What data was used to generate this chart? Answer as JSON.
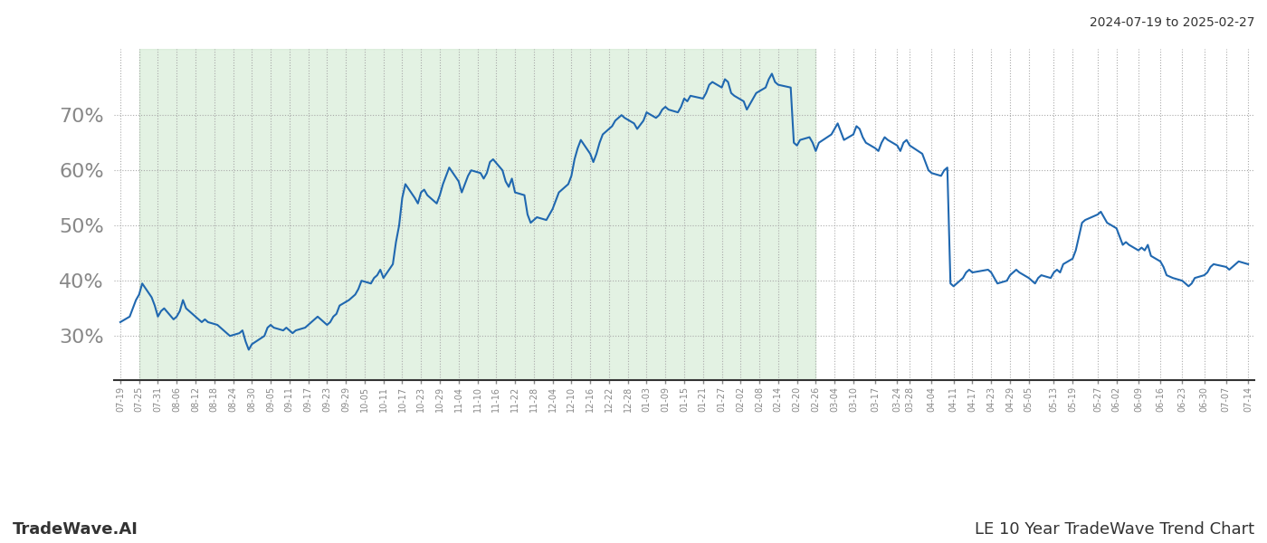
{
  "title_right": "2024-07-19 to 2025-02-27",
  "footer_left": "TradeWave.AI",
  "footer_right": "LE 10 Year TradeWave Trend Chart",
  "shaded_region_start": "2024-07-25",
  "shaded_region_end": "2025-02-26",
  "shaded_color": "#c8e6c9",
  "shaded_alpha": 0.5,
  "line_color": "#2068b0",
  "line_width": 1.5,
  "bg_color": "#ffffff",
  "grid_color": "#aaaaaa",
  "grid_style": ":",
  "ytick_labels": [
    "30%",
    "40%",
    "50%",
    "60%",
    "70%"
  ],
  "ytick_values": [
    30,
    40,
    50,
    60,
    70
  ],
  "ylim": [
    22,
    82
  ],
  "dates": [
    "2024-07-19",
    "2024-07-22",
    "2024-07-23",
    "2024-07-24",
    "2024-07-25",
    "2024-07-26",
    "2024-07-29",
    "2024-07-30",
    "2024-07-31",
    "2024-08-01",
    "2024-08-02",
    "2024-08-05",
    "2024-08-06",
    "2024-08-07",
    "2024-08-08",
    "2024-08-09",
    "2024-08-12",
    "2024-08-13",
    "2024-08-14",
    "2024-08-15",
    "2024-08-16",
    "2024-08-19",
    "2024-08-20",
    "2024-08-21",
    "2024-08-22",
    "2024-08-23",
    "2024-08-26",
    "2024-08-27",
    "2024-08-28",
    "2024-08-29",
    "2024-08-30",
    "2024-09-03",
    "2024-09-04",
    "2024-09-05",
    "2024-09-06",
    "2024-09-09",
    "2024-09-10",
    "2024-09-11",
    "2024-09-12",
    "2024-09-13",
    "2024-09-16",
    "2024-09-17",
    "2024-09-18",
    "2024-09-19",
    "2024-09-20",
    "2024-09-23",
    "2024-09-24",
    "2024-09-25",
    "2024-09-26",
    "2024-09-27",
    "2024-09-30",
    "2024-10-01",
    "2024-10-02",
    "2024-10-03",
    "2024-10-04",
    "2024-10-07",
    "2024-10-08",
    "2024-10-09",
    "2024-10-10",
    "2024-10-11",
    "2024-10-14",
    "2024-10-15",
    "2024-10-16",
    "2024-10-17",
    "2024-10-18",
    "2024-10-21",
    "2024-10-22",
    "2024-10-23",
    "2024-10-24",
    "2024-10-25",
    "2024-10-28",
    "2024-10-29",
    "2024-10-30",
    "2024-10-31",
    "2024-11-01",
    "2024-11-04",
    "2024-11-05",
    "2024-11-06",
    "2024-11-07",
    "2024-11-08",
    "2024-11-11",
    "2024-11-12",
    "2024-11-13",
    "2024-11-14",
    "2024-11-15",
    "2024-11-18",
    "2024-11-19",
    "2024-11-20",
    "2024-11-21",
    "2024-11-22",
    "2024-11-25",
    "2024-11-26",
    "2024-11-27",
    "2024-11-29",
    "2024-12-02",
    "2024-12-03",
    "2024-12-04",
    "2024-12-05",
    "2024-12-06",
    "2024-12-09",
    "2024-12-10",
    "2024-12-11",
    "2024-12-12",
    "2024-12-13",
    "2024-12-16",
    "2024-12-17",
    "2024-12-18",
    "2024-12-19",
    "2024-12-20",
    "2024-12-23",
    "2024-12-24",
    "2024-12-26",
    "2024-12-27",
    "2024-12-30",
    "2024-12-31",
    "2025-01-02",
    "2025-01-03",
    "2025-01-06",
    "2025-01-07",
    "2025-01-08",
    "2025-01-09",
    "2025-01-10",
    "2025-01-13",
    "2025-01-14",
    "2025-01-15",
    "2025-01-16",
    "2025-01-17",
    "2025-01-21",
    "2025-01-22",
    "2025-01-23",
    "2025-01-24",
    "2025-01-27",
    "2025-01-28",
    "2025-01-29",
    "2025-01-30",
    "2025-01-31",
    "2025-02-03",
    "2025-02-04",
    "2025-02-05",
    "2025-02-06",
    "2025-02-07",
    "2025-02-10",
    "2025-02-11",
    "2025-02-12",
    "2025-02-13",
    "2025-02-14",
    "2025-02-18",
    "2025-02-19",
    "2025-02-20",
    "2025-02-21",
    "2025-02-24",
    "2025-02-25",
    "2025-02-26",
    "2025-02-27",
    "2025-03-03",
    "2025-03-04",
    "2025-03-05",
    "2025-03-06",
    "2025-03-07",
    "2025-03-10",
    "2025-03-11",
    "2025-03-12",
    "2025-03-13",
    "2025-03-14",
    "2025-03-17",
    "2025-03-18",
    "2025-03-19",
    "2025-03-20",
    "2025-03-21",
    "2025-03-24",
    "2025-03-25",
    "2025-03-26",
    "2025-03-27",
    "2025-03-28",
    "2025-04-01",
    "2025-04-02",
    "2025-04-03",
    "2025-04-04",
    "2025-04-07",
    "2025-04-08",
    "2025-04-09",
    "2025-04-10",
    "2025-04-11",
    "2025-04-14",
    "2025-04-15",
    "2025-04-16",
    "2025-04-17",
    "2025-04-22",
    "2025-04-23",
    "2025-04-24",
    "2025-04-25",
    "2025-04-28",
    "2025-04-29",
    "2025-04-30",
    "2025-05-01",
    "2025-05-02",
    "2025-05-05",
    "2025-05-06",
    "2025-05-07",
    "2025-05-08",
    "2025-05-09",
    "2025-05-12",
    "2025-05-13",
    "2025-05-14",
    "2025-05-15",
    "2025-05-16",
    "2025-05-19",
    "2025-05-20",
    "2025-05-21",
    "2025-05-22",
    "2025-05-23",
    "2025-05-27",
    "2025-05-28",
    "2025-05-29",
    "2025-05-30",
    "2025-06-02",
    "2025-06-03",
    "2025-06-04",
    "2025-06-05",
    "2025-06-06",
    "2025-06-09",
    "2025-06-10",
    "2025-06-11",
    "2025-06-12",
    "2025-06-13",
    "2025-06-16",
    "2025-06-17",
    "2025-06-18",
    "2025-06-20",
    "2025-06-23",
    "2025-06-24",
    "2025-06-25",
    "2025-06-26",
    "2025-06-27",
    "2025-06-30",
    "2025-07-01",
    "2025-07-02",
    "2025-07-03",
    "2025-07-07",
    "2025-07-08",
    "2025-07-09",
    "2025-07-10",
    "2025-07-11",
    "2025-07-14"
  ],
  "values": [
    32.5,
    33.5,
    35.0,
    36.5,
    37.5,
    39.5,
    37.0,
    35.5,
    33.5,
    34.5,
    35.0,
    33.0,
    33.5,
    34.5,
    36.5,
    35.0,
    33.5,
    33.0,
    32.5,
    33.0,
    32.5,
    32.0,
    31.5,
    31.0,
    30.5,
    30.0,
    30.5,
    31.0,
    29.0,
    27.5,
    28.5,
    30.0,
    31.5,
    32.0,
    31.5,
    31.0,
    31.5,
    31.0,
    30.5,
    31.0,
    31.5,
    32.0,
    32.5,
    33.0,
    33.5,
    32.0,
    32.5,
    33.5,
    34.0,
    35.5,
    36.5,
    37.0,
    37.5,
    38.5,
    40.0,
    39.5,
    40.5,
    41.0,
    42.0,
    40.5,
    43.0,
    47.0,
    50.0,
    55.0,
    57.5,
    55.0,
    54.0,
    56.0,
    56.5,
    55.5,
    54.0,
    55.5,
    57.5,
    59.0,
    60.5,
    58.0,
    56.0,
    57.5,
    59.0,
    60.0,
    59.5,
    58.5,
    59.5,
    61.5,
    62.0,
    60.0,
    58.0,
    57.0,
    58.5,
    56.0,
    55.5,
    52.0,
    50.5,
    51.5,
    51.0,
    52.0,
    53.0,
    54.5,
    56.0,
    57.5,
    59.0,
    62.0,
    64.0,
    65.5,
    63.0,
    61.5,
    63.0,
    65.0,
    66.5,
    68.0,
    69.0,
    70.0,
    69.5,
    68.5,
    67.5,
    69.0,
    70.5,
    69.5,
    70.0,
    71.0,
    71.5,
    71.0,
    70.5,
    71.5,
    73.0,
    72.5,
    73.5,
    73.0,
    74.0,
    75.5,
    76.0,
    75.0,
    76.5,
    76.0,
    74.0,
    73.5,
    72.5,
    71.0,
    72.0,
    73.0,
    74.0,
    75.0,
    76.5,
    77.5,
    76.0,
    75.5,
    75.0,
    65.0,
    64.5,
    65.5,
    66.0,
    65.0,
    63.5,
    65.0,
    66.5,
    67.5,
    68.5,
    67.0,
    65.5,
    66.5,
    68.0,
    67.5,
    66.0,
    65.0,
    64.0,
    63.5,
    65.0,
    66.0,
    65.5,
    64.5,
    63.5,
    65.0,
    65.5,
    64.5,
    63.0,
    61.5,
    60.0,
    59.5,
    59.0,
    60.0,
    60.5,
    39.5,
    39.0,
    40.5,
    41.5,
    42.0,
    41.5,
    42.0,
    41.5,
    40.5,
    39.5,
    40.0,
    41.0,
    41.5,
    42.0,
    41.5,
    40.5,
    40.0,
    39.5,
    40.5,
    41.0,
    40.5,
    41.5,
    42.0,
    41.5,
    43.0,
    44.0,
    45.5,
    48.0,
    50.5,
    51.0,
    52.0,
    52.5,
    51.5,
    50.5,
    49.5,
    48.0,
    46.5,
    47.0,
    46.5,
    45.5,
    46.0,
    45.5,
    46.5,
    44.5,
    43.5,
    42.5,
    41.0,
    40.5,
    40.0,
    39.5,
    39.0,
    39.5,
    40.5,
    41.0,
    41.5,
    42.5,
    43.0,
    42.5,
    42.0,
    42.5,
    43.0,
    43.5,
    43.0
  ],
  "xtick_dates": [
    "2024-07-19",
    "2024-07-25",
    "2024-07-31",
    "2024-08-06",
    "2024-08-12",
    "2024-08-18",
    "2024-08-24",
    "2024-08-30",
    "2024-09-05",
    "2024-09-11",
    "2024-09-17",
    "2024-09-23",
    "2024-09-29",
    "2024-10-05",
    "2024-10-11",
    "2024-10-17",
    "2024-10-23",
    "2024-10-29",
    "2024-11-04",
    "2024-11-10",
    "2024-11-16",
    "2024-11-22",
    "2024-11-28",
    "2024-12-04",
    "2024-12-10",
    "2024-12-16",
    "2024-12-22",
    "2024-12-28",
    "2025-01-03",
    "2025-01-09",
    "2025-01-15",
    "2025-01-21",
    "2025-01-27",
    "2025-02-02",
    "2025-02-08",
    "2025-02-14",
    "2025-02-20",
    "2025-02-26",
    "2025-03-04",
    "2025-03-10",
    "2025-03-17",
    "2025-03-24",
    "2025-03-28",
    "2025-04-04",
    "2025-04-11",
    "2025-04-17",
    "2025-04-23",
    "2025-04-29",
    "2025-05-05",
    "2025-05-13",
    "2025-05-19",
    "2025-05-27",
    "2025-06-02",
    "2025-06-09",
    "2025-06-16",
    "2025-06-23",
    "2025-06-30",
    "2025-07-07",
    "2025-07-14"
  ],
  "xtick_labels": [
    "07-19",
    "07-25",
    "07-31",
    "08-06",
    "08-12",
    "08-18",
    "08-24",
    "08-30",
    "09-05",
    "09-11",
    "09-17",
    "09-23",
    "09-29",
    "10-05",
    "10-11",
    "10-17",
    "10-23",
    "10-29",
    "11-04",
    "11-10",
    "11-16",
    "11-22",
    "11-28",
    "12-04",
    "12-10",
    "12-16",
    "12-22",
    "12-28",
    "01-03",
    "01-09",
    "01-15",
    "01-21",
    "01-27",
    "02-02",
    "02-08",
    "02-14",
    "02-20",
    "02-26",
    "03-04",
    "03-10",
    "03-17",
    "03-24",
    "03-28",
    "04-04",
    "04-11",
    "04-17",
    "04-23",
    "04-29",
    "05-05",
    "05-13",
    "05-19",
    "05-27",
    "06-02",
    "06-09",
    "06-16",
    "06-23",
    "06-30",
    "07-07",
    "07-14"
  ]
}
